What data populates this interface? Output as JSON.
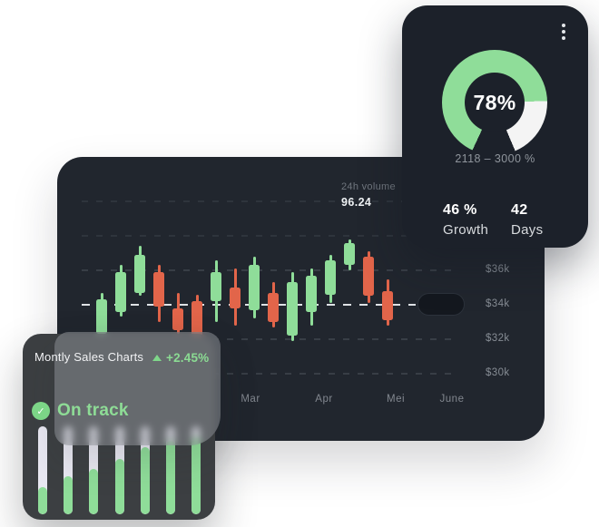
{
  "colors": {
    "green": "#8fdd99",
    "red": "#e2654a",
    "gauge_remainder": "#f4f4f4",
    "bar_track": "#e9e8f2",
    "status_green": "#8edc96",
    "card_dark": "#21262e",
    "gauge_card_bg": "#1c212a",
    "sales_card_bg": "#3c3f42"
  },
  "chart_card": {
    "volume_label": "24h volume",
    "volume_value": "96.24"
  },
  "gauge_card": {
    "menu_icon": "kebab-menu-icon",
    "percent_label": "78%",
    "range_label": "2118 – 3000 %",
    "stats": [
      {
        "value": "46 %",
        "label": "Growth"
      },
      {
        "value": "42",
        "label": "Days"
      }
    ]
  },
  "sales_card": {
    "title": "Montly Sales Charts",
    "trend_icon": "triangle-up-icon",
    "change": "+2.45%",
    "status_icon": "check-circle-icon",
    "status": "On track",
    "check_glyph": "✓"
  },
  "chart_data": [
    {
      "type": "candlestick",
      "title": "",
      "y_unit": "$k",
      "y_ticks": [
        {
          "label": "$36k",
          "value": 36
        },
        {
          "label": "$34k",
          "value": 34
        },
        {
          "label": "$32k",
          "value": 32
        },
        {
          "label": "$30k",
          "value": 30
        }
      ],
      "x_ticks": [
        "Mar",
        "Apr",
        "Mei",
        "June"
      ],
      "baseline_value": 34,
      "gridline_values": [
        40,
        38,
        36,
        32,
        30
      ],
      "ylim": [
        30,
        40
      ],
      "up_color": "#8fdd99",
      "down_color": "#e2654a",
      "candles": [
        {
          "open": 32.3,
          "high": 34.7,
          "low": 31.7,
          "close": 34.3
        },
        {
          "open": 33.6,
          "high": 36.3,
          "low": 33.3,
          "close": 35.9
        },
        {
          "open": 34.7,
          "high": 37.4,
          "low": 34.5,
          "close": 36.9
        },
        {
          "open": 35.9,
          "high": 36.3,
          "low": 33.0,
          "close": 33.9
        },
        {
          "open": 33.8,
          "high": 34.7,
          "low": 32.3,
          "close": 32.5
        },
        {
          "open": 34.2,
          "high": 34.6,
          "low": 31.4,
          "close": 32.1
        },
        {
          "open": 34.2,
          "high": 36.6,
          "low": 33.0,
          "close": 35.9
        },
        {
          "open": 35.0,
          "high": 36.1,
          "low": 32.8,
          "close": 33.8
        },
        {
          "open": 33.7,
          "high": 36.8,
          "low": 33.2,
          "close": 36.3
        },
        {
          "open": 34.7,
          "high": 35.3,
          "low": 32.7,
          "close": 33.0
        },
        {
          "open": 32.2,
          "high": 35.9,
          "low": 31.9,
          "close": 35.3
        },
        {
          "open": 33.6,
          "high": 36.1,
          "low": 32.8,
          "close": 35.7
        },
        {
          "open": 34.6,
          "high": 36.9,
          "low": 34.1,
          "close": 36.6
        },
        {
          "open": 36.3,
          "high": 37.8,
          "low": 36.0,
          "close": 37.6
        },
        {
          "open": 36.8,
          "high": 37.1,
          "low": 34.1,
          "close": 34.5
        },
        {
          "open": 34.8,
          "high": 35.5,
          "low": 32.8,
          "close": 33.1
        }
      ]
    },
    {
      "type": "gauge",
      "percent": 78,
      "center_label": "78%",
      "range_label": "2118 – 3000 %",
      "arc_color": "#8fdd99",
      "remainder_color": "#f4f4f4",
      "start_deg": 205,
      "sweep_deg": 312
    },
    {
      "type": "bar",
      "orientation": "vertical-progress",
      "values_percent": [
        31,
        43,
        52,
        63,
        76,
        84,
        88
      ],
      "fill_color": "#8fdd99",
      "track_color": "#e9e8f2"
    }
  ]
}
